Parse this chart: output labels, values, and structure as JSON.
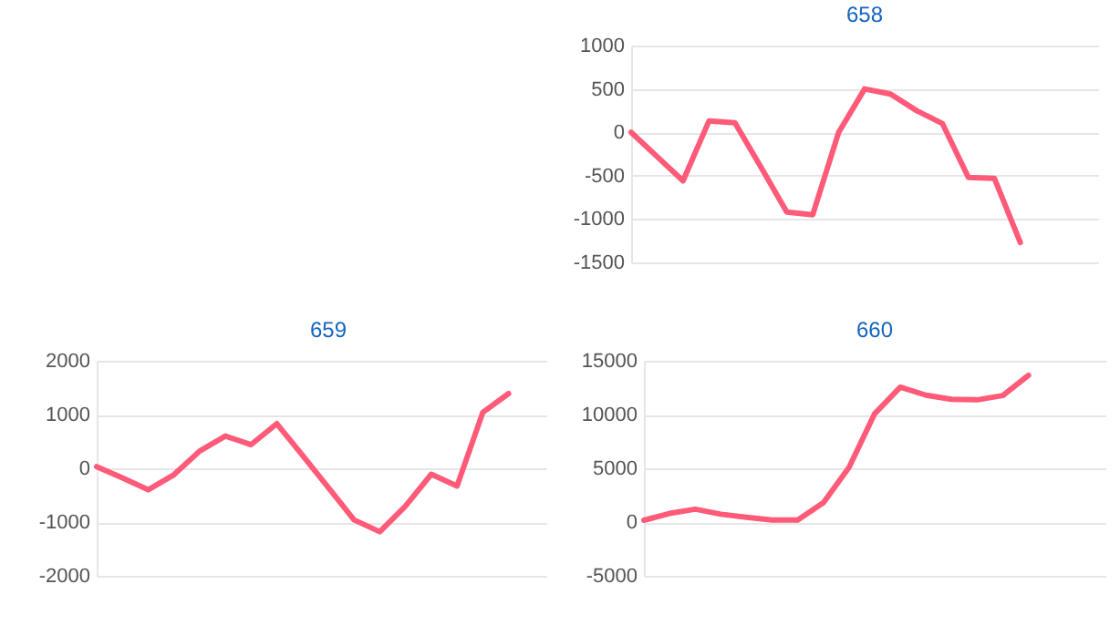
{
  "chart_data": [
    {
      "type": "line",
      "title": "658",
      "categories": [
        null,
        null,
        null,
        null,
        null,
        null,
        null,
        null,
        null,
        null,
        null,
        null,
        null,
        null,
        null,
        null,
        null,
        null,
        null
      ],
      "series": [
        {
          "color": "#ff5a78",
          "values": [
            0,
            -280,
            -560,
            130,
            110,
            -400,
            -920,
            -950,
            0,
            500,
            440,
            250,
            100,
            -520,
            -530,
            -1270,
            null,
            null,
            null
          ]
        }
      ],
      "ylim": [
        -1500,
        1000
      ],
      "yticks": [
        -1500,
        -1000,
        -500,
        0,
        500,
        1000
      ],
      "grid": "y",
      "tick_labels": "y",
      "marker": "none",
      "line_style": "solid"
    },
    {
      "type": "line",
      "title": "659",
      "categories": [
        null,
        null,
        null,
        null,
        null,
        null,
        null,
        null,
        null,
        null,
        null,
        null,
        null,
        null,
        null,
        null,
        null,
        null,
        null
      ],
      "series": [
        {
          "color": "#ff5a78",
          "values": [
            30,
            -180,
            -400,
            -120,
            320,
            600,
            440,
            830,
            240,
            -360,
            -960,
            -1180,
            -700,
            -110,
            -330,
            1040,
            1390,
            null,
            null
          ]
        }
      ],
      "ylim": [
        -2000,
        2000
      ],
      "yticks": [
        -2000,
        -1000,
        0,
        1000,
        2000
      ],
      "grid": "y",
      "tick_labels": "y",
      "marker": "none",
      "line_style": "solid"
    },
    {
      "type": "line",
      "title": "660",
      "categories": [
        null,
        null,
        null,
        null,
        null,
        null,
        null,
        null,
        null,
        null,
        null,
        null,
        null,
        null,
        null,
        null,
        null,
        null,
        null
      ],
      "series": [
        {
          "color": "#ff5a78",
          "values": [
            170,
            800,
            1200,
            730,
            440,
            190,
            200,
            1800,
            5080,
            10080,
            12550,
            11800,
            11420,
            11370,
            11770,
            13660,
            null,
            null,
            null
          ]
        }
      ],
      "ylim": [
        -5000,
        15000
      ],
      "yticks": [
        -5000,
        0,
        5000,
        10000,
        15000
      ],
      "grid": "y",
      "tick_labels": "y",
      "marker": "none",
      "line_style": "solid"
    }
  ]
}
